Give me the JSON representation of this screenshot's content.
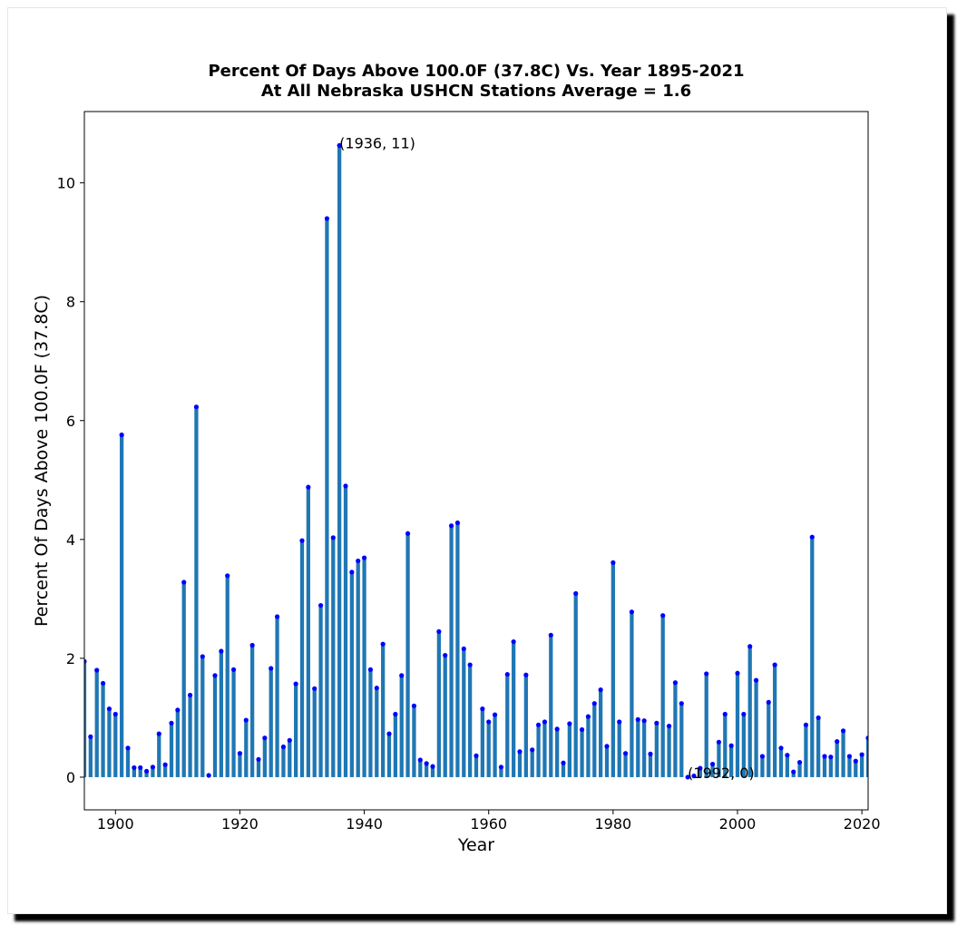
{
  "chart_data": {
    "type": "bar",
    "title": "Percent Of Days Above 100.0F (37.8C) Vs. Year 1895-2021",
    "subtitle": "At All Nebraska USHCN Stations Average = 1.6",
    "xlabel": "Year",
    "ylabel": "Percent Of Days Above 100.0F (37.8C)",
    "xlim": [
      1895,
      2021
    ],
    "ylim": [
      -0.55,
      11.2
    ],
    "xticks": [
      1900,
      1920,
      1940,
      1960,
      1980,
      2000,
      2020
    ],
    "yticks": [
      0,
      2,
      4,
      6,
      8,
      10
    ],
    "bar_color": "#1f77b4",
    "marker_color": "#0000ff",
    "annotations": [
      {
        "x": 1936,
        "y": 10.6,
        "text": "(1936, 11)"
      },
      {
        "x": 1992,
        "y": 0.0,
        "text": "(1992, 0)"
      }
    ],
    "x": [
      1895,
      1896,
      1897,
      1898,
      1899,
      1900,
      1901,
      1902,
      1903,
      1904,
      1905,
      1906,
      1907,
      1908,
      1909,
      1910,
      1911,
      1912,
      1913,
      1914,
      1915,
      1916,
      1917,
      1918,
      1919,
      1920,
      1921,
      1922,
      1923,
      1924,
      1925,
      1926,
      1927,
      1928,
      1929,
      1930,
      1931,
      1932,
      1933,
      1934,
      1935,
      1936,
      1937,
      1938,
      1939,
      1940,
      1941,
      1942,
      1943,
      1944,
      1945,
      1946,
      1947,
      1948,
      1949,
      1950,
      1951,
      1952,
      1953,
      1954,
      1955,
      1956,
      1957,
      1958,
      1959,
      1960,
      1961,
      1962,
      1963,
      1964,
      1965,
      1966,
      1967,
      1968,
      1969,
      1970,
      1971,
      1972,
      1973,
      1974,
      1975,
      1976,
      1977,
      1978,
      1979,
      1980,
      1981,
      1982,
      1983,
      1984,
      1985,
      1986,
      1987,
      1988,
      1989,
      1990,
      1991,
      1992,
      1993,
      1994,
      1995,
      1996,
      1997,
      1998,
      1999,
      2000,
      2001,
      2002,
      2003,
      2004,
      2005,
      2006,
      2007,
      2008,
      2009,
      2010,
      2011,
      2012,
      2013,
      2014,
      2015,
      2016,
      2017,
      2018,
      2019,
      2020,
      2021
    ],
    "values": [
      1.95,
      0.68,
      1.8,
      1.58,
      1.15,
      1.06,
      5.76,
      0.49,
      0.16,
      0.16,
      0.1,
      0.17,
      0.73,
      0.21,
      0.91,
      1.13,
      3.28,
      1.38,
      6.23,
      2.03,
      0.03,
      1.71,
      2.12,
      3.39,
      1.81,
      0.4,
      0.96,
      2.22,
      0.3,
      0.66,
      1.83,
      2.7,
      0.51,
      0.62,
      1.57,
      3.98,
      4.88,
      1.49,
      2.89,
      9.4,
      4.03,
      10.63,
      4.9,
      3.45,
      3.64,
      3.69,
      1.81,
      1.5,
      2.24,
      0.73,
      1.06,
      1.71,
      4.1,
      1.2,
      0.29,
      0.23,
      0.18,
      2.45,
      2.05,
      4.23,
      4.28,
      2.16,
      1.89,
      0.36,
      1.15,
      0.93,
      1.05,
      0.17,
      1.73,
      2.28,
      0.43,
      1.72,
      0.46,
      0.88,
      0.93,
      2.39,
      0.81,
      0.24,
      0.9,
      3.09,
      0.8,
      1.02,
      1.24,
      1.47,
      0.52,
      3.61,
      0.93,
      0.4,
      2.78,
      0.97,
      0.95,
      0.39,
      0.91,
      2.72,
      0.86,
      1.59,
      1.24,
      0.0,
      0.02,
      0.15,
      1.74,
      0.22,
      0.59,
      1.06,
      0.53,
      1.75,
      1.06,
      2.2,
      1.63,
      0.35,
      1.26,
      1.89,
      0.49,
      0.37,
      0.09,
      0.25,
      0.88,
      4.04,
      1.0,
      0.35,
      0.34,
      0.6,
      0.78,
      0.35,
      0.27,
      0.38,
      0.66
    ]
  }
}
